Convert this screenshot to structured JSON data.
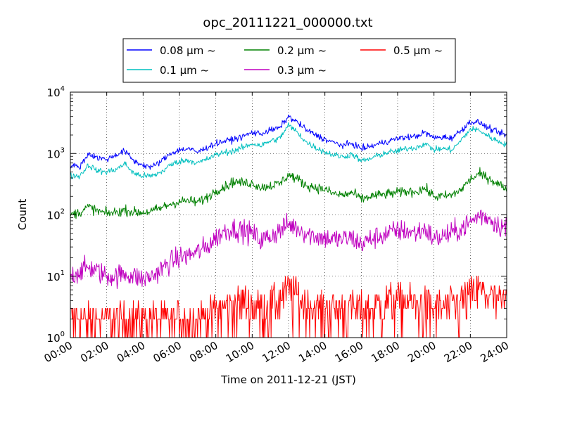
{
  "chart_data": {
    "type": "line",
    "title": "opc_20111221_000000.txt",
    "xlabel": "Time on 2011-12-21 (JST)",
    "ylabel": "Count",
    "x_unit": "hour",
    "xlim": [
      0,
      24
    ],
    "ylim": [
      1,
      10000
    ],
    "y_scale": "log",
    "grid": true,
    "legend_position": "top-center",
    "x_ticks": [
      "00:00",
      "02:00",
      "04:00",
      "06:00",
      "08:00",
      "10:00",
      "12:00",
      "14:00",
      "16:00",
      "18:00",
      "20:00",
      "22:00",
      "24:00"
    ],
    "y_ticks": [
      {
        "base": "10",
        "exp": "0"
      },
      {
        "base": "10",
        "exp": "1"
      },
      {
        "base": "10",
        "exp": "2"
      },
      {
        "base": "10",
        "exp": "3"
      },
      {
        "base": "10",
        "exp": "4"
      }
    ],
    "x": [
      0,
      0.5,
      1,
      1.5,
      2,
      2.5,
      3,
      3.5,
      4,
      4.5,
      5,
      5.5,
      6,
      6.5,
      7,
      7.5,
      8,
      8.5,
      9,
      9.5,
      10,
      10.5,
      11,
      11.5,
      12,
      12.5,
      13,
      13.5,
      14,
      14.5,
      15,
      15.5,
      16,
      16.5,
      17,
      17.5,
      18,
      18.5,
      19,
      19.5,
      20,
      20.5,
      21,
      21.5,
      22,
      22.5,
      23,
      23.5,
      24
    ],
    "series": [
      {
        "name": "0.08 μm ~",
        "color": "#0000ff",
        "values": [
          650,
          600,
          1000,
          850,
          800,
          950,
          1100,
          750,
          650,
          600,
          750,
          1000,
          1150,
          1200,
          1050,
          1250,
          1450,
          1600,
          1700,
          1900,
          2200,
          2100,
          2400,
          2600,
          4000,
          3200,
          2400,
          2000,
          1700,
          1500,
          1350,
          1450,
          1200,
          1300,
          1450,
          1600,
          1750,
          1850,
          1900,
          2200,
          1800,
          1850,
          1800,
          2400,
          3300,
          3200,
          2600,
          2200,
          2000
        ],
        "noise": 0.05
      },
      {
        "name": "0.1 μm ~",
        "color": "#00bfbf",
        "values": [
          430,
          430,
          650,
          520,
          500,
          550,
          680,
          470,
          430,
          430,
          500,
          650,
          750,
          780,
          700,
          800,
          950,
          1050,
          1100,
          1250,
          1450,
          1350,
          1600,
          1750,
          2900,
          2200,
          1500,
          1250,
          1050,
          950,
          880,
          980,
          750,
          820,
          950,
          1050,
          1100,
          1200,
          1250,
          1450,
          1150,
          1200,
          1150,
          1650,
          2500,
          2400,
          1900,
          1600,
          1400
        ],
        "noise": 0.05
      },
      {
        "name": "0.2 μm ~",
        "color": "#008000",
        "values": [
          100,
          110,
          135,
          115,
          105,
          110,
          120,
          110,
          110,
          115,
          130,
          150,
          165,
          170,
          160,
          190,
          250,
          290,
          350,
          330,
          330,
          280,
          300,
          320,
          450,
          380,
          300,
          280,
          260,
          220,
          210,
          230,
          180,
          200,
          210,
          220,
          230,
          240,
          240,
          270,
          200,
          200,
          210,
          260,
          380,
          460,
          400,
          320,
          270
        ],
        "noise": 0.08
      },
      {
        "name": "0.3 μm ~",
        "color": "#bf00bf",
        "values": [
          10,
          12,
          14,
          12,
          10,
          10,
          11,
          10,
          9,
          10,
          13,
          17,
          20,
          22,
          25,
          30,
          42,
          55,
          60,
          55,
          50,
          38,
          45,
          55,
          70,
          62,
          50,
          45,
          42,
          40,
          40,
          42,
          33,
          40,
          45,
          50,
          55,
          55,
          50,
          60,
          40,
          45,
          50,
          60,
          75,
          100,
          90,
          70,
          60
        ],
        "noise": 0.18
      },
      {
        "name": "0.5 μm ~",
        "color": "#ff0000",
        "values": [
          2,
          2,
          2,
          2,
          2,
          2,
          2,
          2,
          2,
          2,
          2,
          2,
          2,
          2,
          2,
          2.2,
          2.8,
          3,
          3.5,
          4,
          3.5,
          3.2,
          3.5,
          4.5,
          6,
          5,
          3.5,
          3,
          3,
          3,
          3,
          3,
          3,
          3,
          3.5,
          4,
          4,
          4,
          3.5,
          3.5,
          3,
          3,
          3.5,
          4,
          5,
          6,
          5,
          4,
          3.5
        ],
        "noise": 0.35
      }
    ],
    "legend": [
      {
        "label": "0.08 μm ~",
        "color": "#0000ff"
      },
      {
        "label": "0.1 μm ~",
        "color": "#00bfbf"
      },
      {
        "label": "0.2 μm ~",
        "color": "#008000"
      },
      {
        "label": "0.3 μm ~",
        "color": "#bf00bf"
      },
      {
        "label": "0.5 μm ~",
        "color": "#ff0000"
      }
    ]
  }
}
